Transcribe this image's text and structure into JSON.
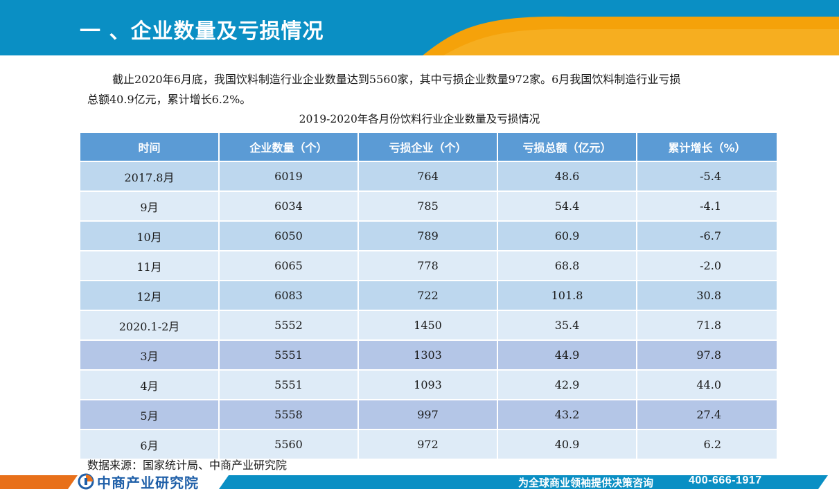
{
  "header": {
    "title": "一 、企业数量及亏损情况",
    "colors": {
      "blue": "#0a8fc4",
      "orange": "#f5a20a"
    }
  },
  "intro": {
    "line1": "截止2020年6月底，我国饮料制造行业企业数量达到5560家，其中亏损企业数量972家。6月我国饮料制造行业亏损",
    "line2": "总额40.9亿元，累计增长6.2%。"
  },
  "table": {
    "caption": "2019-2020年各月份饮料行业企业数量及亏损情况",
    "headers": [
      "时间",
      "企业数量（个）",
      "亏损企业（个）",
      "亏损总额（亿元）",
      "累计增长（%）"
    ],
    "rows": [
      [
        "2017.8月",
        "6019",
        "764",
        "48.6",
        "-5.4"
      ],
      [
        "9月",
        "6034",
        "785",
        "54.4",
        "-4.1"
      ],
      [
        "10月",
        "6050",
        "789",
        "60.9",
        "-6.7"
      ],
      [
        "11月",
        "6065",
        "778",
        "68.8",
        "-2.0"
      ],
      [
        "12月",
        "6083",
        "722",
        "101.8",
        "30.8"
      ],
      [
        "2020.1-2月",
        "5552",
        "1450",
        "35.4",
        "71.8"
      ],
      [
        "3月",
        "5551",
        "1303",
        "44.9",
        "97.8"
      ],
      [
        "4月",
        "5551",
        "1093",
        "42.9",
        "44.0"
      ],
      [
        "5月",
        "5558",
        "997",
        "43.2",
        "27.4"
      ],
      [
        "6月",
        "5560",
        "972",
        "40.9",
        "6.2"
      ]
    ],
    "colors": {
      "header": "#5b9bd5",
      "row_a": "#bdd7ee",
      "row_b": "#deebf7",
      "row_c": "#b4c6e7"
    }
  },
  "source": "数据来源：国家统计局、中商产业研究院",
  "footer": {
    "logo_text": "中商产业研究院",
    "slogan": "为全球商业领袖提供决策咨询",
    "phone": "400-666-1917"
  }
}
